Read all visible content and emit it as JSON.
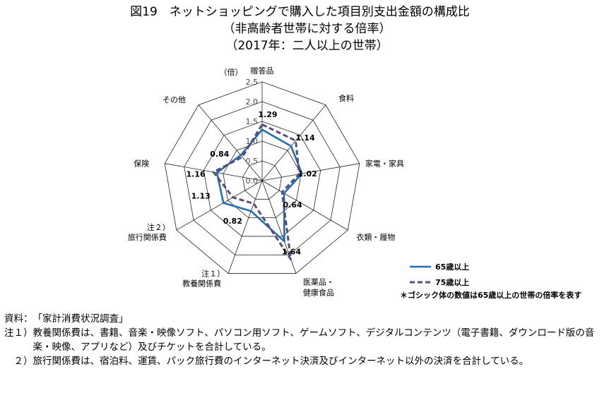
{
  "header": {
    "title": "図19　ネットショッピングで購入した項目別支出金額の構成比",
    "subtitle1": "（非高齢者世帯に対する倍率）",
    "subtitle2": "（2017年：二人以上の世帯）"
  },
  "chart_data": {
    "type": "radar",
    "unit_label": "（倍）",
    "rlim": [
      0,
      2.5
    ],
    "ticks": [
      "0.0",
      "0.5",
      "1.0",
      "1.5",
      "2.0",
      "2.5"
    ],
    "tick_values": [
      0,
      0.5,
      1.0,
      1.5,
      2.0,
      2.5
    ],
    "grid": true,
    "categories": [
      {
        "label": [
          "贈答品"
        ],
        "note": ""
      },
      {
        "label": [
          "食料"
        ],
        "note": ""
      },
      {
        "label": [
          "家電・家具"
        ],
        "note": ""
      },
      {
        "label": [
          "衣類・履物"
        ],
        "note": ""
      },
      {
        "label": [
          "医薬品・",
          "健康食品"
        ],
        "note": ""
      },
      {
        "label": [
          "教養関係費"
        ],
        "note": "注１）"
      },
      {
        "label": [
          "旅行関係費"
        ],
        "note": "注２）"
      },
      {
        "label": [
          "保険"
        ],
        "note": ""
      },
      {
        "label": [
          "その他"
        ],
        "note": ""
      }
    ],
    "value_labels": [
      "1.29",
      "1.14",
      "1.02",
      "0.64",
      "1.64",
      "0.82",
      "1.13",
      "1.16",
      "0.84"
    ],
    "series": [
      {
        "name": "65歳以上",
        "values": [
          1.29,
          1.14,
          1.02,
          0.64,
          1.64,
          0.82,
          1.13,
          1.16,
          0.84
        ],
        "color": "#1f6fb2",
        "style": "solid"
      },
      {
        "name": "75歳以上",
        "values": [
          1.42,
          1.32,
          0.95,
          0.58,
          2.12,
          0.62,
          0.85,
          1.25,
          0.78
        ],
        "color": "#5b4a7d",
        "style": "dashed"
      }
    ],
    "legend_note": "＊ゴシック体の数値は65歳以上の世帯の倍率を表す",
    "legend_position": "bottom-right"
  },
  "notes": [
    {
      "head": "資料：",
      "body": "「家計消費状況調査」"
    },
    {
      "head": "注１）",
      "body": "教養関係費は、書籍、音楽・映像ソフト、パソコン用ソフト、ゲームソフト、デジタルコンテンツ（電子書籍、ダウンロード版の音楽・映像、アプリなど）及びチケットを合計している。"
    },
    {
      "head": "　２）",
      "body": "旅行関係費は、宿泊料、運賃、パック旅行費のインターネット決済及びインターネット以外の決済を合計している。"
    }
  ]
}
